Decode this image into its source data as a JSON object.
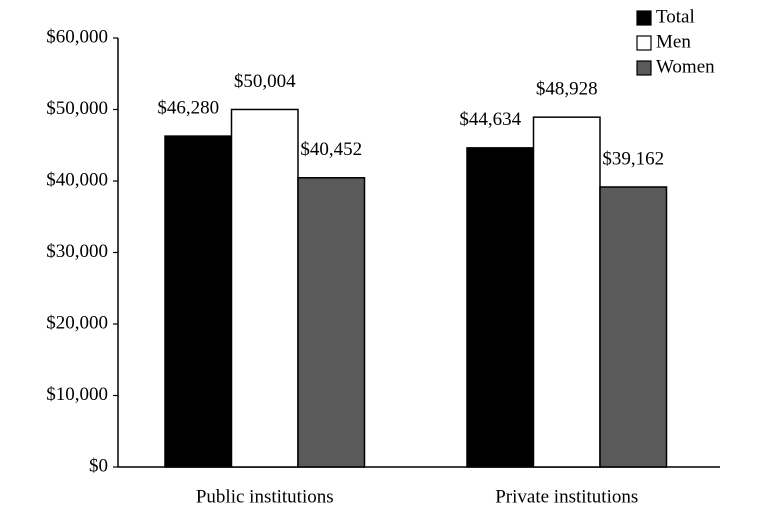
{
  "chart_data": {
    "type": "bar",
    "categories": [
      "Public institutions",
      "Private institutions"
    ],
    "series": [
      {
        "name": "Total",
        "color": "#000000",
        "values": [
          46280,
          44634
        ],
        "value_labels": [
          "$46,280",
          "$44,634"
        ]
      },
      {
        "name": "Men",
        "color": "#ffffff",
        "values": [
          50004,
          48928
        ],
        "value_labels": [
          "$50,004",
          "$48,928"
        ]
      },
      {
        "name": "Women",
        "color": "#5a5a5a",
        "values": [
          40452,
          39162
        ],
        "value_labels": [
          "$40,452",
          "$39,162"
        ]
      }
    ],
    "ylim": [
      0,
      60000
    ],
    "yticks": [
      {
        "value": 0,
        "label": "$0"
      },
      {
        "value": 10000,
        "label": "$10,000"
      },
      {
        "value": 20000,
        "label": "$20,000"
      },
      {
        "value": 30000,
        "label": "$30,000"
      },
      {
        "value": 40000,
        "label": "$40,000"
      },
      {
        "value": 50000,
        "label": "$50,000"
      },
      {
        "value": 60000,
        "label": "$60,000"
      }
    ],
    "legend": "top-right"
  }
}
